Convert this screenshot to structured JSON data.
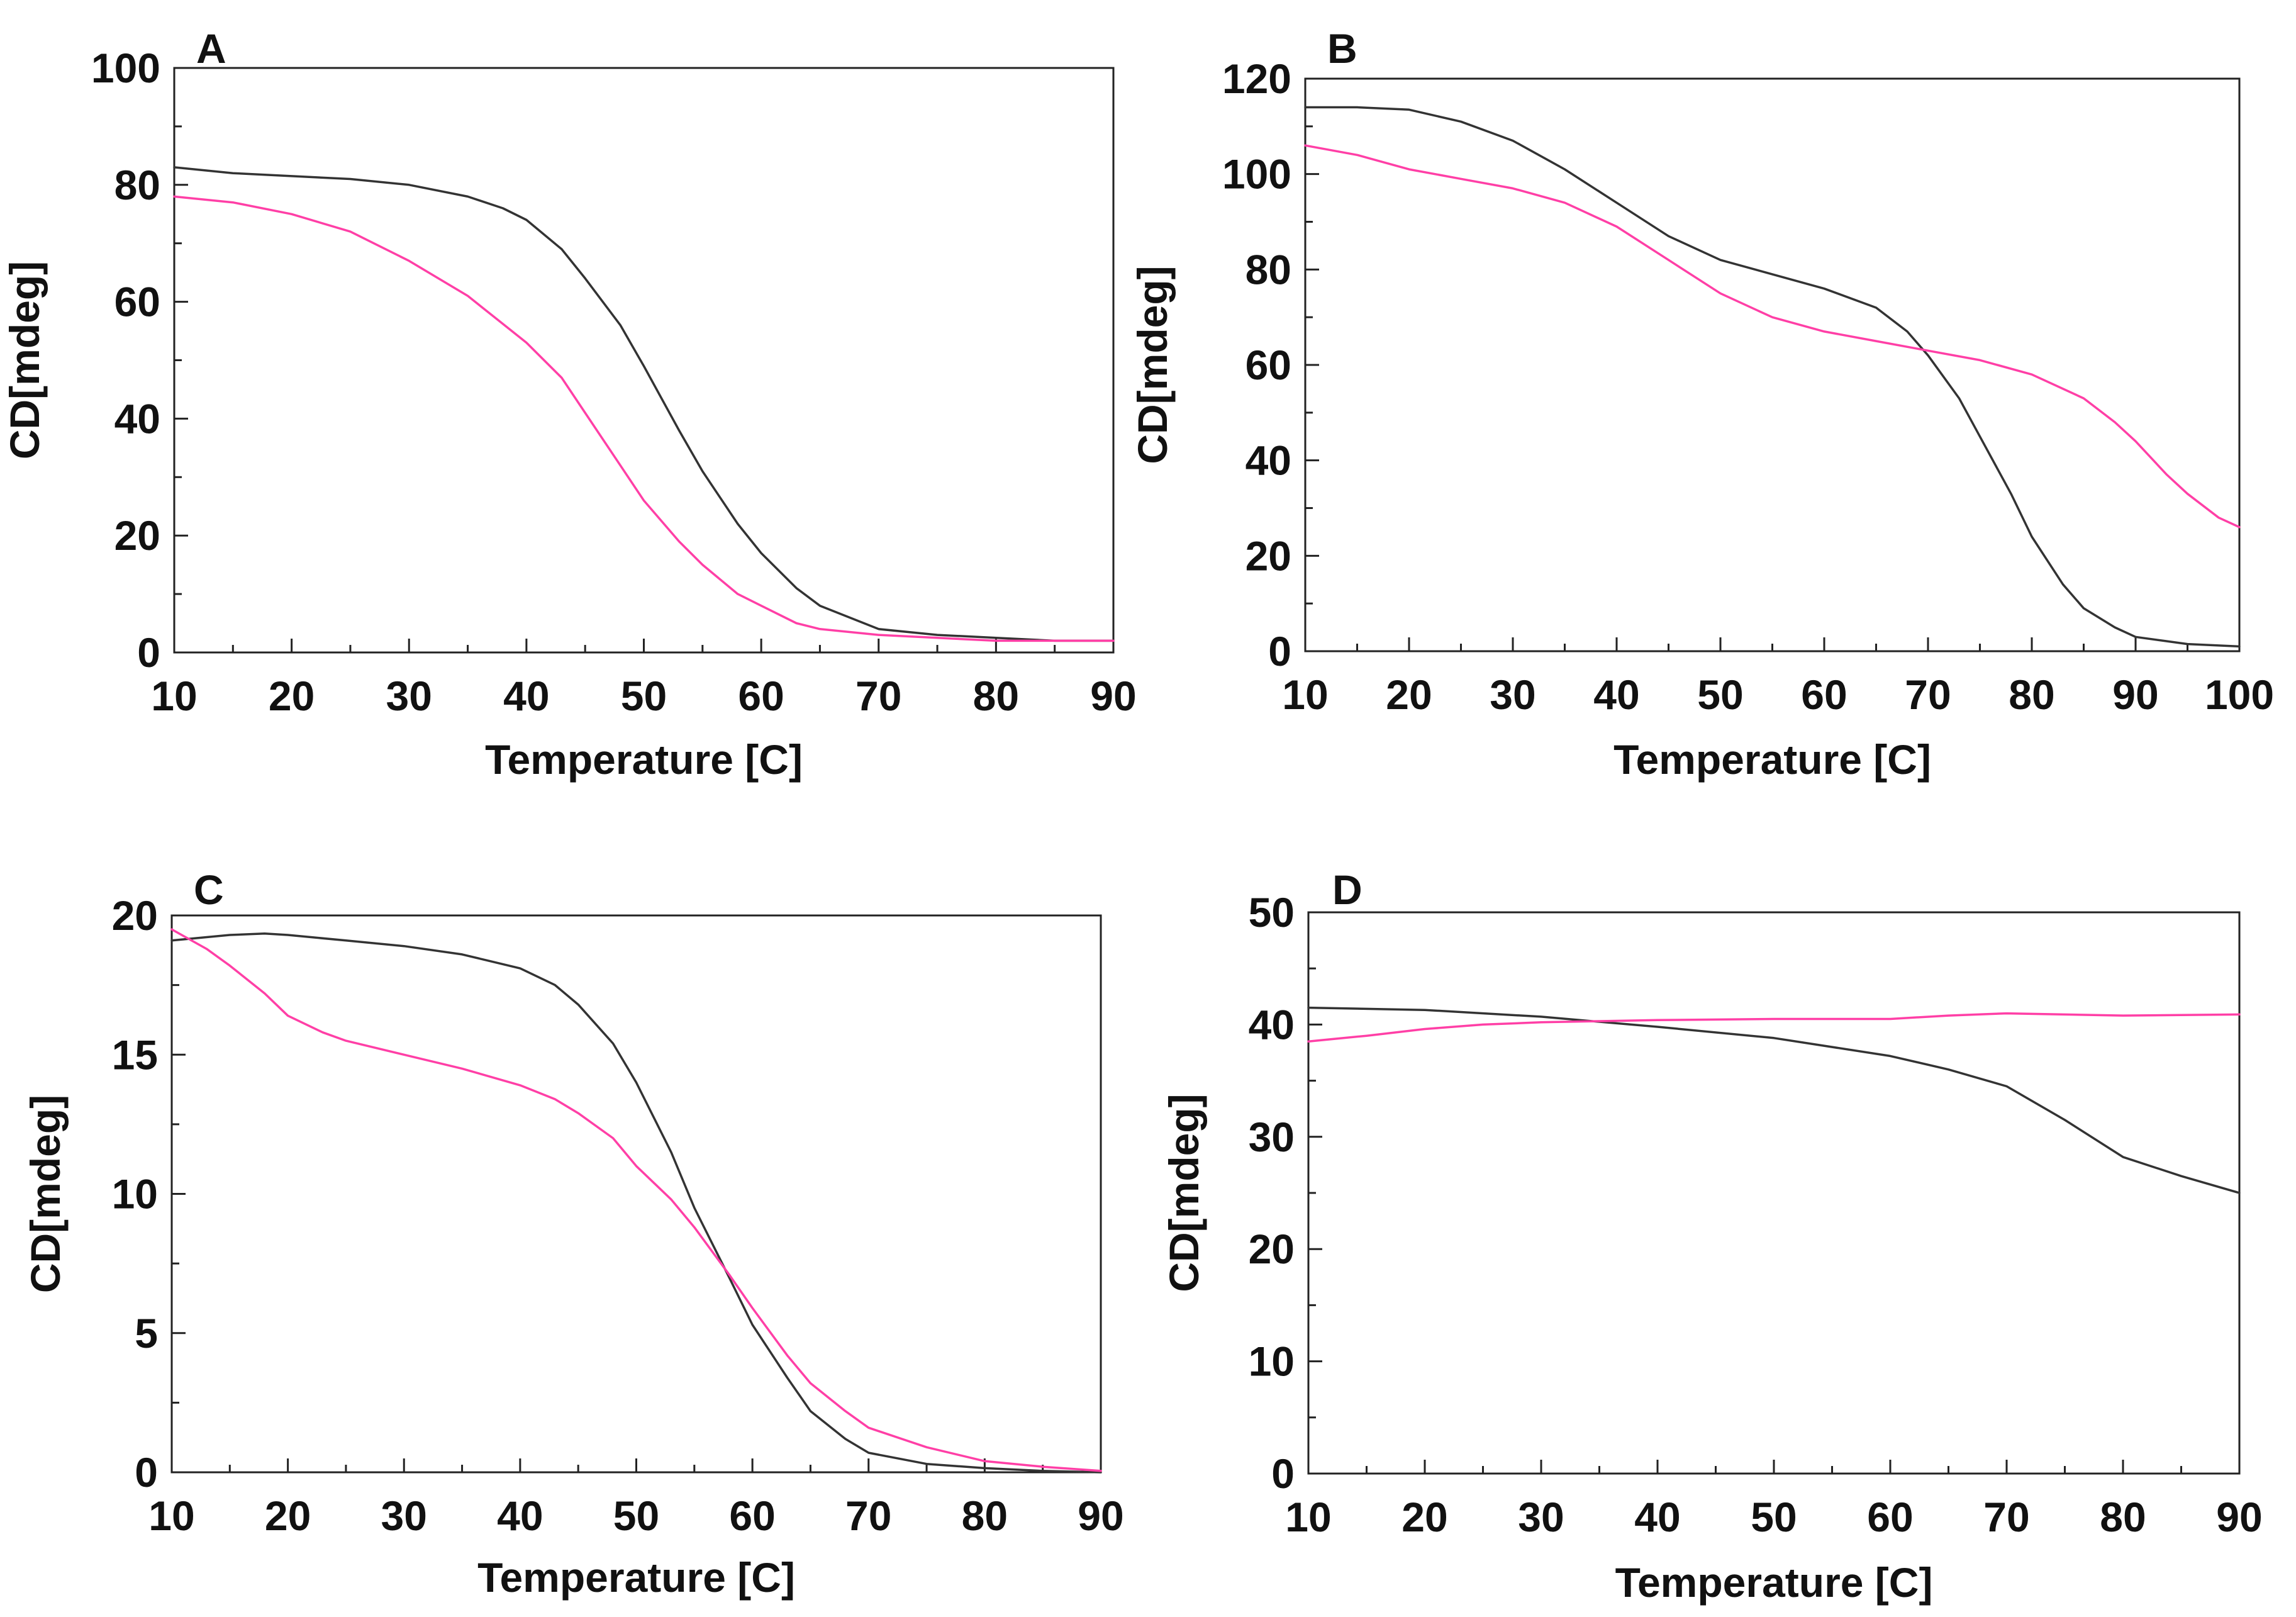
{
  "figure": {
    "colors": {
      "black_series": "#333333",
      "pink_series": "#ff3fa6",
      "frame": "#222222"
    }
  },
  "chart_data": [
    {
      "panel_label": "A",
      "type": "line",
      "xlabel": "Temperature [C]",
      "ylabel": "CD[mdeg]",
      "xlim": [
        10,
        90
      ],
      "ylim": [
        0,
        100
      ],
      "xticks": [
        10,
        20,
        30,
        40,
        50,
        60,
        70,
        80,
        90
      ],
      "yticks": [
        0,
        20,
        40,
        60,
        80,
        100
      ],
      "series": [
        {
          "name": "black",
          "color": "#333333",
          "x": [
            10,
            15,
            20,
            25,
            30,
            35,
            38,
            40,
            43,
            45,
            48,
            50,
            53,
            55,
            58,
            60,
            63,
            65,
            70,
            75,
            80,
            85,
            90
          ],
          "y": [
            83,
            82,
            81.5,
            81,
            80,
            78,
            76,
            74,
            69,
            64,
            56,
            49,
            38,
            31,
            22,
            17,
            11,
            8,
            4,
            3,
            2.5,
            2,
            2
          ]
        },
        {
          "name": "pink",
          "color": "#ff3fa6",
          "x": [
            10,
            15,
            20,
            25,
            30,
            35,
            40,
            43,
            45,
            48,
            50,
            53,
            55,
            58,
            60,
            63,
            65,
            70,
            75,
            80,
            85,
            90
          ],
          "y": [
            78,
            77,
            75,
            72,
            67,
            61,
            53,
            47,
            41,
            32,
            26,
            19,
            15,
            10,
            8,
            5,
            4,
            3,
            2.5,
            2,
            2,
            2
          ]
        }
      ]
    },
    {
      "panel_label": "B",
      "type": "line",
      "xlabel": "Temperature [C]",
      "ylabel": "CD[mdeg]",
      "xlim": [
        10,
        100
      ],
      "ylim": [
        0,
        120
      ],
      "xticks": [
        10,
        20,
        30,
        40,
        50,
        60,
        70,
        80,
        90,
        100
      ],
      "yticks": [
        0,
        20,
        40,
        60,
        80,
        100,
        120
      ],
      "series": [
        {
          "name": "black",
          "color": "#333333",
          "x": [
            10,
            15,
            20,
            25,
            30,
            35,
            40,
            45,
            50,
            55,
            60,
            65,
            68,
            70,
            73,
            75,
            78,
            80,
            83,
            85,
            88,
            90,
            95,
            100
          ],
          "y": [
            114,
            114,
            113.5,
            111,
            107,
            101,
            94,
            87,
            82,
            79,
            76,
            72,
            67,
            62,
            53,
            45,
            33,
            24,
            14,
            9,
            5,
            3,
            1.5,
            1
          ]
        },
        {
          "name": "pink",
          "color": "#ff3fa6",
          "x": [
            10,
            15,
            20,
            25,
            30,
            35,
            40,
            45,
            50,
            55,
            60,
            65,
            70,
            75,
            80,
            85,
            88,
            90,
            93,
            95,
            98,
            100
          ],
          "y": [
            106,
            104,
            101,
            99,
            97,
            94,
            89,
            82,
            75,
            70,
            67,
            65,
            63,
            61,
            58,
            53,
            48,
            44,
            37,
            33,
            28,
            26
          ]
        }
      ]
    },
    {
      "panel_label": "C",
      "type": "line",
      "xlabel": "Temperature [C]",
      "ylabel": "CD[mdeg]",
      "xlim": [
        10,
        90
      ],
      "ylim": [
        0,
        20
      ],
      "xticks": [
        10,
        20,
        30,
        40,
        50,
        60,
        70,
        80,
        90
      ],
      "yticks": [
        0,
        5,
        10,
        15,
        20
      ],
      "series": [
        {
          "name": "black",
          "color": "#333333",
          "x": [
            10,
            15,
            18,
            20,
            25,
            30,
            35,
            40,
            43,
            45,
            48,
            50,
            53,
            55,
            58,
            60,
            63,
            65,
            68,
            70,
            75,
            80,
            85,
            90
          ],
          "y": [
            19.1,
            19.3,
            19.35,
            19.3,
            19.1,
            18.9,
            18.6,
            18.1,
            17.5,
            16.8,
            15.4,
            14,
            11.5,
            9.5,
            7,
            5.3,
            3.4,
            2.2,
            1.2,
            0.7,
            0.3,
            0.15,
            0.05,
            0
          ]
        },
        {
          "name": "pink",
          "color": "#ff3fa6",
          "x": [
            10,
            13,
            15,
            18,
            20,
            23,
            25,
            30,
            35,
            40,
            43,
            45,
            48,
            50,
            53,
            55,
            58,
            60,
            63,
            65,
            68,
            70,
            75,
            80,
            85,
            90
          ],
          "y": [
            19.5,
            18.8,
            18.2,
            17.2,
            16.4,
            15.8,
            15.5,
            15,
            14.5,
            13.9,
            13.4,
            12.9,
            12,
            11,
            9.8,
            8.8,
            7.1,
            5.9,
            4.2,
            3.2,
            2.2,
            1.6,
            0.9,
            0.4,
            0.2,
            0.05
          ]
        }
      ]
    },
    {
      "panel_label": "D",
      "type": "line",
      "xlabel": "Temperature [C]",
      "ylabel": "CD[mdeg]",
      "xlim": [
        10,
        90
      ],
      "ylim": [
        0,
        50
      ],
      "xticks": [
        10,
        20,
        30,
        40,
        50,
        60,
        70,
        80,
        90
      ],
      "yticks": [
        0,
        10,
        20,
        30,
        40,
        50
      ],
      "series": [
        {
          "name": "black",
          "color": "#333333",
          "x": [
            10,
            20,
            30,
            40,
            50,
            60,
            65,
            70,
            75,
            80,
            85,
            90
          ],
          "y": [
            41.5,
            41.3,
            40.7,
            39.8,
            38.8,
            37.2,
            36,
            34.5,
            31.5,
            28.2,
            26.5,
            25
          ]
        },
        {
          "name": "pink",
          "color": "#ff3fa6",
          "x": [
            10,
            15,
            20,
            25,
            30,
            35,
            40,
            50,
            60,
            65,
            70,
            80,
            90
          ],
          "y": [
            38.5,
            39,
            39.6,
            40,
            40.2,
            40.3,
            40.4,
            40.5,
            40.5,
            40.8,
            41,
            40.8,
            40.9
          ]
        }
      ]
    }
  ]
}
